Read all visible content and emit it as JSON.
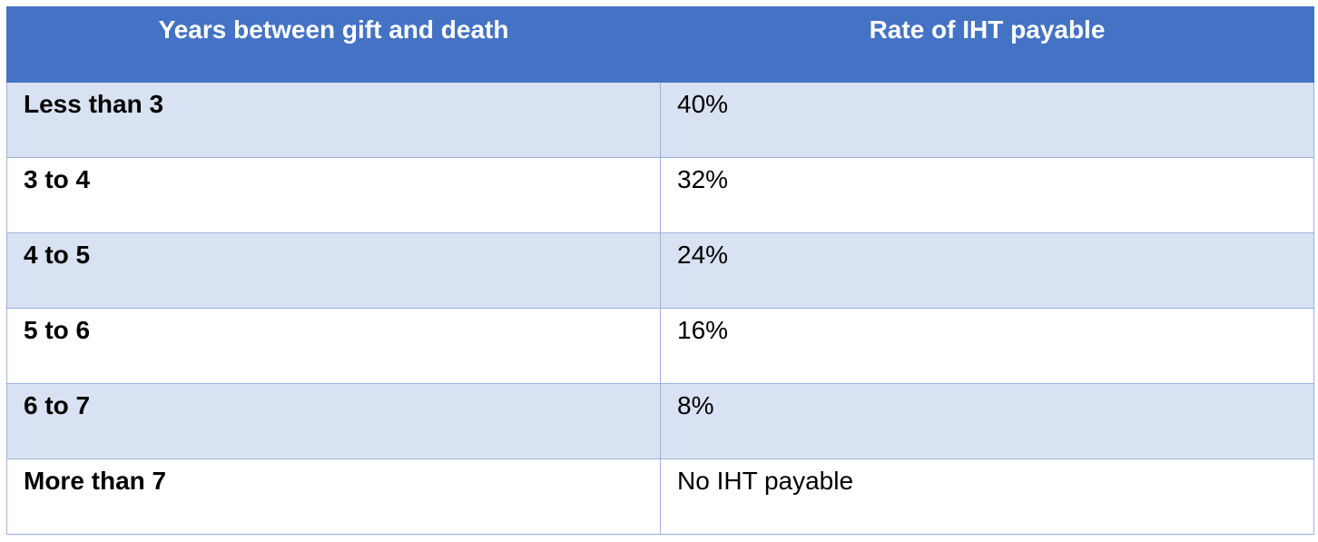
{
  "table": {
    "headers": {
      "years": "Years between gift and death",
      "rate": "Rate of IHT payable"
    },
    "rows": [
      {
        "years": "Less than 3",
        "rate": "40%"
      },
      {
        "years": "3 to 4",
        "rate": "32%"
      },
      {
        "years": "4 to 5",
        "rate": "24%"
      },
      {
        "years": "5 to 6",
        "rate": "16%"
      },
      {
        "years": "6 to 7",
        "rate": "8%"
      },
      {
        "years": "More than 7",
        "rate": "No IHT payable"
      }
    ]
  },
  "colors": {
    "header_bg": "#4472c4",
    "header_text": "#ffffff",
    "band_row_bg": "#d9e2f3",
    "plain_row_bg": "#ffffff",
    "border": "#9cb2de"
  }
}
